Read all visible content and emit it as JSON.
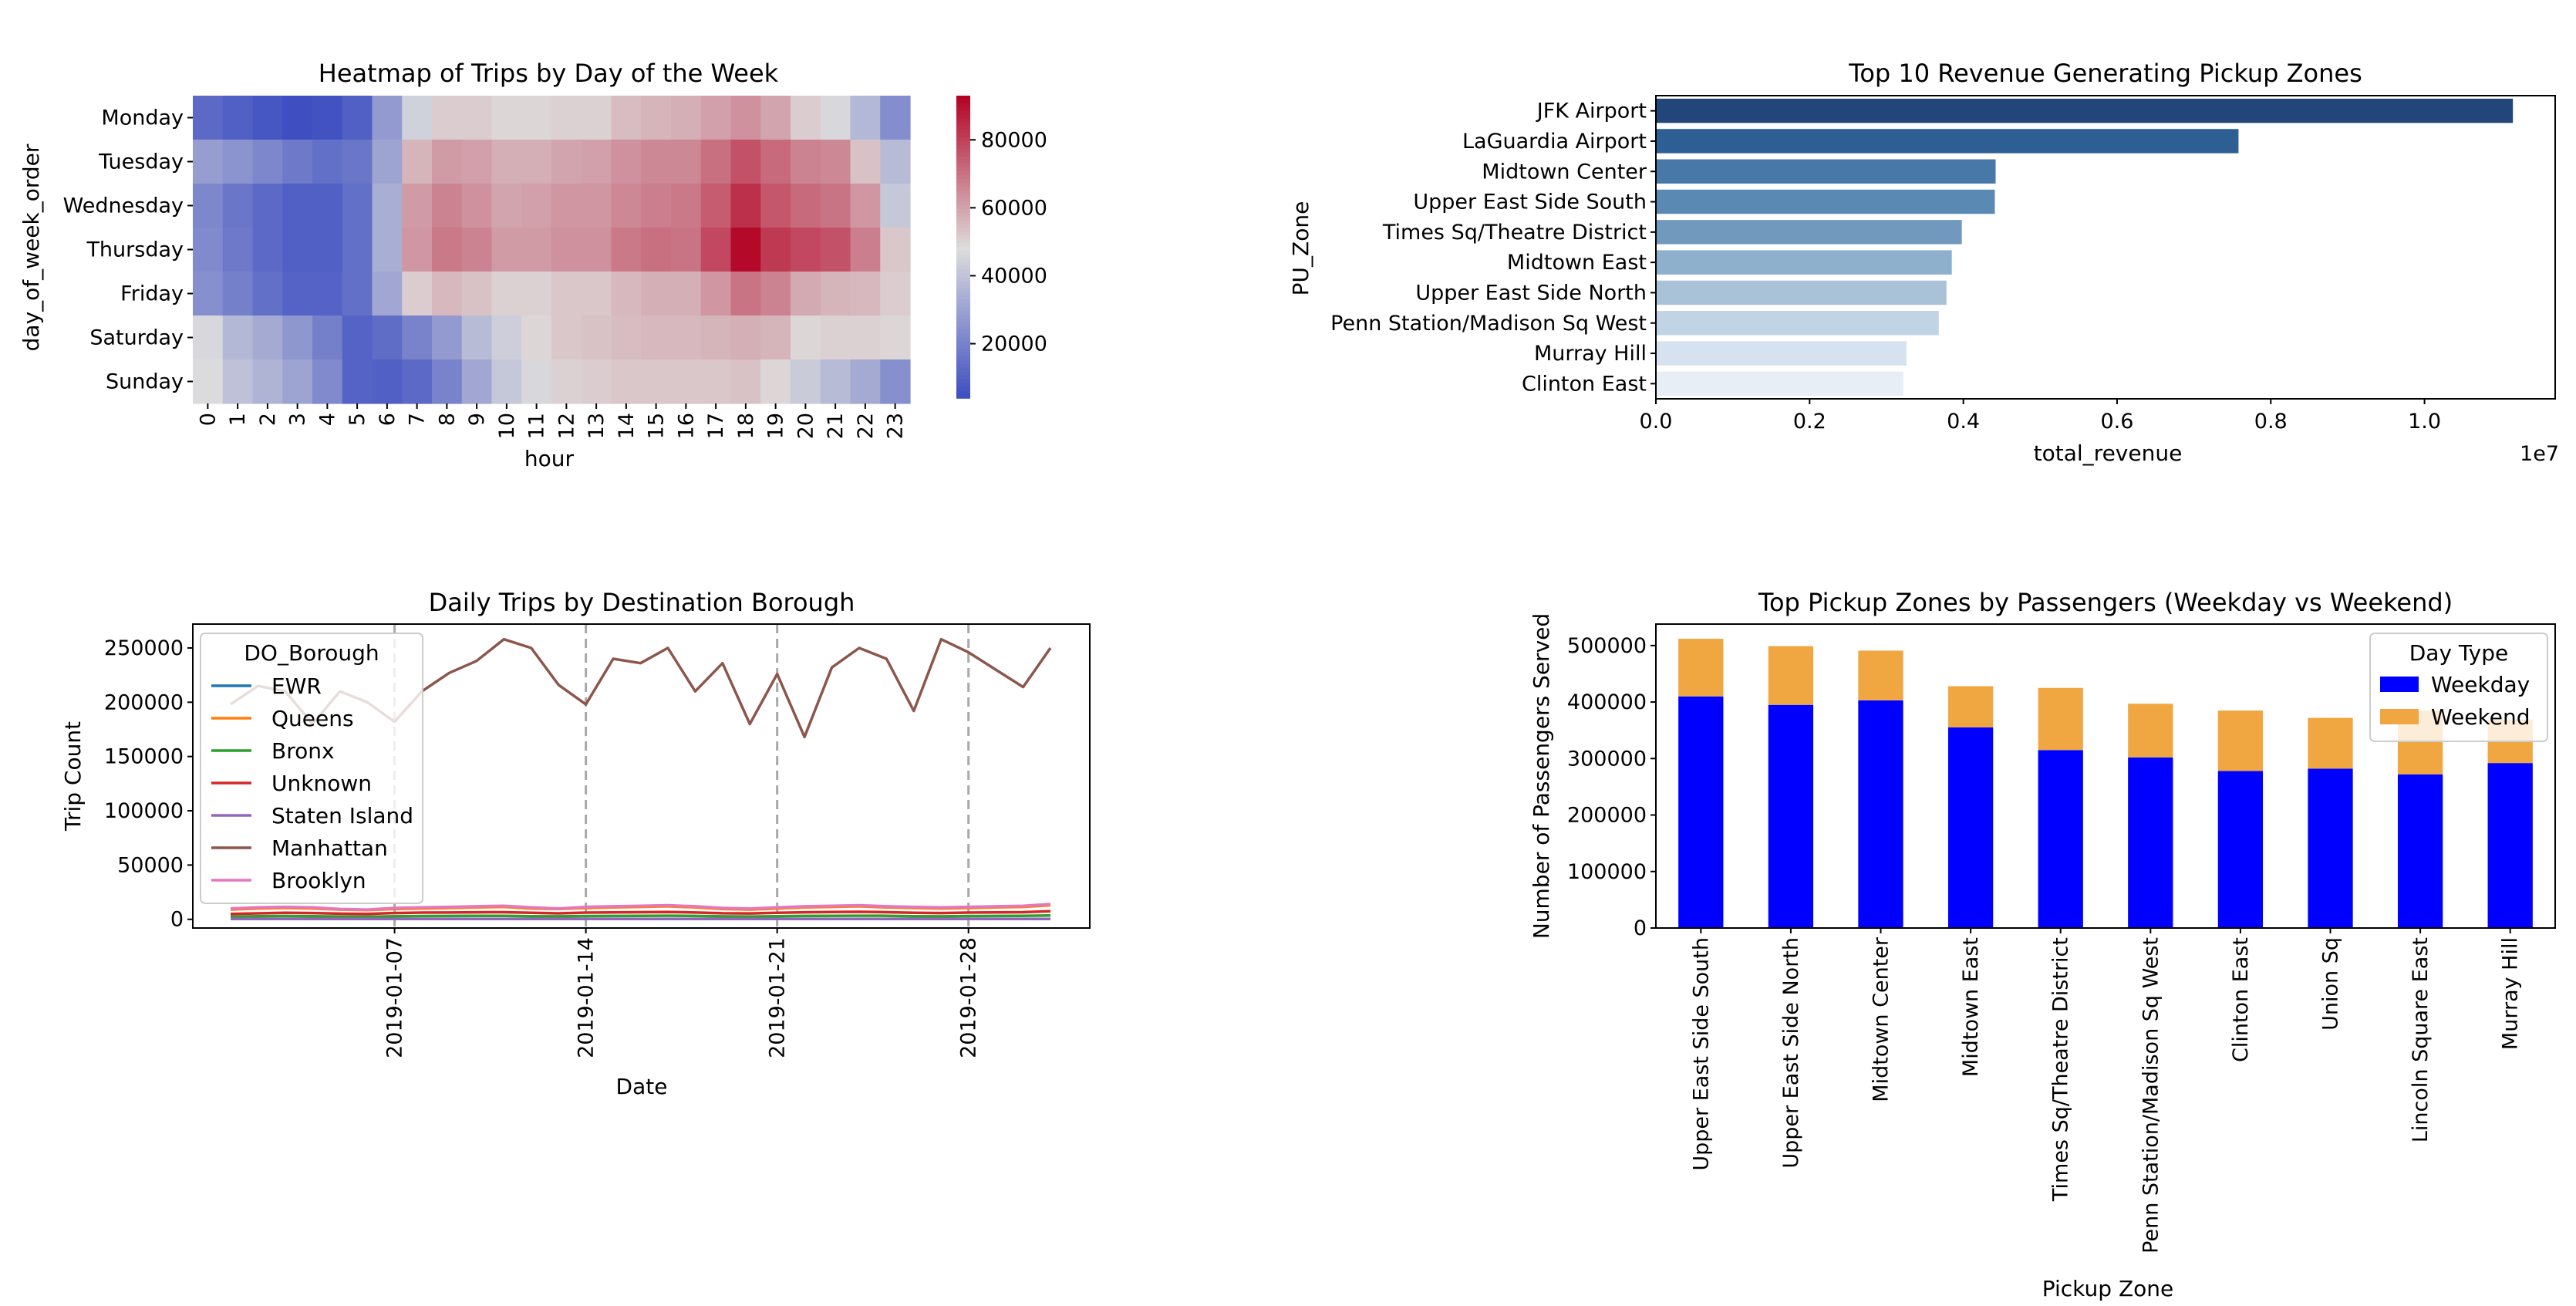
{
  "chart_data": [
    {
      "type": "heatmap",
      "title": "Heatmap of Trips by Day of the Week",
      "xlabel": "hour",
      "ylabel": "day_of_week_order",
      "x": [
        "0",
        "1",
        "2",
        "3",
        "4",
        "5",
        "6",
        "7",
        "8",
        "9",
        "10",
        "11",
        "12",
        "13",
        "14",
        "15",
        "16",
        "17",
        "18",
        "19",
        "20",
        "21",
        "22",
        "23"
      ],
      "y": [
        "Monday",
        "Tuesday",
        "Wednesday",
        "Thursday",
        "Friday",
        "Saturday",
        "Sunday"
      ],
      "values": [
        [
          13000,
          10000,
          7000,
          5000,
          6000,
          10000,
          28000,
          45000,
          52000,
          52000,
          50000,
          50000,
          51000,
          51000,
          55000,
          57000,
          58000,
          61000,
          64000,
          60000,
          52000,
          47000,
          37000,
          24000
        ],
        [
          29000,
          26000,
          22000,
          18000,
          15000,
          17000,
          31000,
          57000,
          62000,
          61000,
          58000,
          58000,
          60000,
          61000,
          64000,
          66000,
          66000,
          71000,
          77000,
          72000,
          67000,
          66000,
          54000,
          38000
        ],
        [
          22000,
          17000,
          13000,
          10000,
          10000,
          15000,
          34000,
          62000,
          67000,
          64000,
          60000,
          61000,
          63000,
          63000,
          66000,
          68000,
          69000,
          75000,
          84000,
          76000,
          72000,
          70000,
          63000,
          42000
        ],
        [
          23000,
          18000,
          13000,
          10000,
          10000,
          15000,
          34000,
          63000,
          69000,
          67000,
          62000,
          62000,
          64000,
          64000,
          69000,
          71000,
          70000,
          79000,
          92000,
          82000,
          79000,
          77000,
          68000,
          53000
        ],
        [
          25000,
          20000,
          15000,
          11000,
          11000,
          15000,
          32000,
          52000,
          56000,
          54000,
          51000,
          51000,
          53000,
          53000,
          56000,
          58000,
          58000,
          63000,
          70000,
          67000,
          59000,
          57000,
          56000,
          52000
        ],
        [
          47000,
          37000,
          33000,
          27000,
          20000,
          11000,
          14000,
          21000,
          28000,
          38000,
          44000,
          50000,
          53000,
          54000,
          55000,
          56000,
          56000,
          57000,
          58000,
          57000,
          50000,
          51000,
          51000,
          50000
        ],
        [
          48000,
          40000,
          36000,
          31000,
          23000,
          11000,
          10000,
          13000,
          21000,
          32000,
          42000,
          47000,
          51000,
          52000,
          53000,
          53000,
          53000,
          53000,
          54000,
          50000,
          43000,
          38000,
          33000,
          25000
        ]
      ],
      "colorbar": {
        "min": 4000,
        "max": 93000,
        "ticks": [
          20000,
          40000,
          60000,
          80000
        ]
      },
      "colormap": [
        "#3b4cc0",
        "#dddddd",
        "#b40426"
      ]
    },
    {
      "type": "bar",
      "orientation": "horizontal",
      "title": "Top 10 Revenue Generating Pickup Zones",
      "xlabel": "total_revenue",
      "ylabel": "PU_Zone",
      "xscale_label": "1e7",
      "categories": [
        "JFK Airport",
        "LaGuardia Airport",
        "Midtown Center",
        "Upper East Side South",
        "Times Sq/Theatre District",
        "Midtown East",
        "Upper East Side North",
        "Penn Station/Madison Sq West",
        "Murray Hill",
        "Clinton East"
      ],
      "values": [
        11150000,
        7580000,
        4420000,
        4410000,
        3980000,
        3850000,
        3780000,
        3680000,
        3260000,
        3220000
      ],
      "xlim": [
        0,
        11700000
      ],
      "xticks": [
        "0.0",
        "0.2",
        "0.4",
        "0.6",
        "0.8",
        "1.0"
      ],
      "colors": [
        "#23467a",
        "#2d5f95",
        "#4878a8",
        "#5a8ab4",
        "#7199be",
        "#8eb0cc",
        "#a9c2d7",
        "#c0d4e5",
        "#d6e2ef",
        "#e7eef6"
      ]
    },
    {
      "type": "line",
      "title": "Daily Trips by Destination Borough",
      "xlabel": "Date",
      "ylabel": "Trip Count",
      "legend_title": "DO_Borough",
      "legend_position": "upper-left",
      "x": [
        "2019-01-01",
        "2019-01-02",
        "2019-01-03",
        "2019-01-04",
        "2019-01-05",
        "2019-01-06",
        "2019-01-07",
        "2019-01-08",
        "2019-01-09",
        "2019-01-10",
        "2019-01-11",
        "2019-01-12",
        "2019-01-13",
        "2019-01-14",
        "2019-01-15",
        "2019-01-16",
        "2019-01-17",
        "2019-01-18",
        "2019-01-19",
        "2019-01-20",
        "2019-01-21",
        "2019-01-22",
        "2019-01-23",
        "2019-01-24",
        "2019-01-25",
        "2019-01-26",
        "2019-01-27",
        "2019-01-28",
        "2019-01-29",
        "2019-01-30",
        "2019-01-31"
      ],
      "xticks": [
        "2019-01-07",
        "2019-01-14",
        "2019-01-21",
        "2019-01-28"
      ],
      "vlines": [
        "2019-01-07",
        "2019-01-14",
        "2019-01-21",
        "2019-01-28"
      ],
      "yticks": [
        0,
        50000,
        100000,
        150000,
        200000,
        250000
      ],
      "ylim": [
        -8000,
        272000
      ],
      "series": [
        {
          "name": "EWR",
          "color": "#1f77b4",
          "values": [
            300,
            400,
            400,
            400,
            400,
            350,
            300,
            400,
            400,
            400,
            400,
            350,
            300,
            400,
            400,
            400,
            400,
            350,
            300,
            300,
            400,
            400,
            400,
            400,
            350,
            300,
            400,
            400,
            400,
            400,
            400
          ]
        },
        {
          "name": "Queens",
          "color": "#ff7f0e",
          "values": [
            9000,
            10000,
            10500,
            10000,
            9000,
            8500,
            9500,
            10000,
            10500,
            11000,
            11500,
            10000,
            9500,
            10500,
            11000,
            11500,
            12000,
            11000,
            9500,
            9000,
            10000,
            11000,
            11500,
            12000,
            11000,
            10500,
            10000,
            10500,
            11000,
            11500,
            13000
          ]
        },
        {
          "name": "Bronx",
          "color": "#2ca02c",
          "values": [
            2500,
            2800,
            3000,
            2900,
            2600,
            2400,
            2800,
            3000,
            3100,
            3200,
            3200,
            2900,
            2700,
            3000,
            3100,
            3200,
            3300,
            3100,
            2700,
            2600,
            2900,
            3100,
            3200,
            3300,
            3200,
            2900,
            2700,
            3000,
            3100,
            3200,
            3600
          ]
        },
        {
          "name": "Unknown",
          "color": "#d62728",
          "values": [
            5000,
            5500,
            6000,
            5800,
            5200,
            5000,
            5800,
            6200,
            6300,
            6500,
            6600,
            6000,
            5500,
            6200,
            6400,
            6600,
            6800,
            6300,
            5600,
            5400,
            6000,
            6500,
            6700,
            6900,
            6600,
            6000,
            5800,
            6200,
            6400,
            6600,
            7500
          ]
        },
        {
          "name": "Staten Island",
          "color": "#9467bd",
          "values": [
            300,
            300,
            350,
            350,
            300,
            300,
            300,
            350,
            350,
            350,
            350,
            300,
            300,
            350,
            350,
            350,
            350,
            300,
            300,
            300,
            350,
            350,
            350,
            350,
            300,
            300,
            350,
            350,
            350,
            350,
            350
          ]
        },
        {
          "name": "Manhattan",
          "color": "#8c564b",
          "values": [
            198000,
            215000,
            210000,
            180000,
            210000,
            200000,
            182000,
            210000,
            227000,
            238000,
            258000,
            250000,
            216000,
            198000,
            240000,
            236000,
            250000,
            210000,
            236000,
            180000,
            226000,
            168000,
            232000,
            250000,
            240000,
            192000,
            258000,
            246000,
            230000,
            214000,
            250000
          ]
        },
        {
          "name": "Brooklyn",
          "color": "#e377c2",
          "values": [
            10000,
            11000,
            11500,
            11000,
            9500,
            9000,
            10500,
            11000,
            11500,
            12000,
            12500,
            11000,
            10000,
            11500,
            12000,
            12500,
            13000,
            12000,
            10500,
            10000,
            11000,
            12000,
            12500,
            13000,
            12000,
            11500,
            11000,
            11500,
            12000,
            12500,
            14000
          ]
        }
      ]
    },
    {
      "type": "bar",
      "stacked": true,
      "title": "Top Pickup Zones by Passengers (Weekday vs Weekend)",
      "xlabel": "Pickup Zone",
      "ylabel": "Number of Passengers Served",
      "legend_title": "Day Type",
      "legend_position": "upper-right",
      "categories": [
        "Upper East Side South",
        "Upper East Side North",
        "Midtown Center",
        "Midtown East",
        "Times Sq/Theatre District",
        "Penn Station/Madison Sq West",
        "Clinton East",
        "Union Sq",
        "Lincoln Square East",
        "Murray Hill"
      ],
      "yticks": [
        0,
        100000,
        200000,
        300000,
        400000,
        500000
      ],
      "ylim": [
        0,
        538000
      ],
      "series": [
        {
          "name": "Weekday",
          "color": "#0000ff",
          "values": [
            410000,
            395000,
            403000,
            355000,
            315000,
            302000,
            278000,
            282000,
            272000,
            292000
          ]
        },
        {
          "name": "Weekend",
          "color": "#f0a742",
          "values": [
            102000,
            104000,
            88000,
            73000,
            110000,
            95000,
            107000,
            90000,
            113000,
            77000
          ]
        }
      ]
    }
  ]
}
